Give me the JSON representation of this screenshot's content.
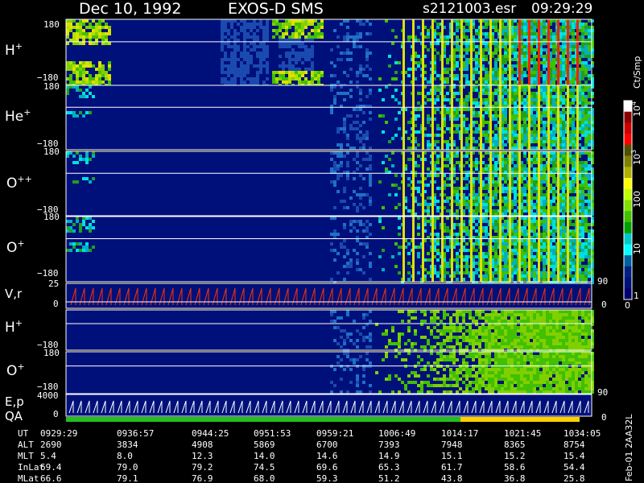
{
  "header": {
    "date": "Dec 10, 1992",
    "mission": "EXOS-D SMS",
    "file": "s2121003.esr",
    "start_time": "09:29:29"
  },
  "panels": [
    {
      "label": "H",
      "sup": "+",
      "ytop": "180",
      "ybot": "−180"
    },
    {
      "label": "He",
      "sup": "+",
      "ytop": "180",
      "ybot": "−180"
    },
    {
      "label": "O",
      "sup": "++",
      "ytop": "180",
      "ybot": "−180"
    },
    {
      "label": "O",
      "sup": "+",
      "ytop": "180",
      "ybot": "−180"
    },
    {
      "label": "V,r",
      "sup": "",
      "ytop": "25",
      "ybot": "0"
    },
    {
      "label": "H",
      "sup": "+",
      "ytop": "",
      "ybot": "−180"
    },
    {
      "label": "O",
      "sup": "+",
      "ytop": "180",
      "ybot": "−180"
    },
    {
      "label": "E,p",
      "sup": "",
      "ytop": "4000",
      "ybot": "0"
    }
  ],
  "qa_label": "QA",
  "right_axis": {
    "vr_top": "90",
    "vr_bot": "0",
    "o_bot": "90",
    "ep_bot": "0"
  },
  "colorbar": {
    "title": "Ct/Smp",
    "ticks": [
      {
        "label": "10",
        "sup": "4",
        "rotated": true
      },
      {
        "label": "10",
        "sup": "3",
        "rotated": true
      },
      {
        "label": "100",
        "sup": "",
        "rotated": true
      },
      {
        "label": "10",
        "sup": "",
        "rotated": true
      },
      {
        "label": "1",
        "sup": "",
        "rotated": false
      },
      {
        "label": "0",
        "sup": "",
        "rotated": false
      }
    ],
    "colors": [
      "#ffffff",
      "#8b0000",
      "#cc0000",
      "#ff0000",
      "#505000",
      "#808000",
      "#b0b000",
      "#ffff00",
      "#c0ff00",
      "#80e000",
      "#40c000",
      "#00a000",
      "#00c8c8",
      "#00ffff",
      "#0060a0",
      "#002080",
      "#00107a",
      "#000070"
    ]
  },
  "ephemeris": {
    "row_labels": [
      "UT",
      "ALT",
      "MLT",
      "InLat",
      "MLat"
    ],
    "columns": [
      [
        "0929:29",
        "2690",
        "5.4",
        "69.4",
        "66.6"
      ],
      [
        "0936:57",
        "3834",
        "8.0",
        "79.0",
        "79.1"
      ],
      [
        "0944:25",
        "4908",
        "12.3",
        "79.2",
        "76.9"
      ],
      [
        "0951:53",
        "5869",
        "14.0",
        "74.5",
        "68.0"
      ],
      [
        "0959:21",
        "6700",
        "14.6",
        "69.6",
        "59.3"
      ],
      [
        "1006:49",
        "7393",
        "14.9",
        "65.3",
        "51.2"
      ],
      [
        "1014:17",
        "7948",
        "15.1",
        "61.7",
        "43.8"
      ],
      [
        "1021:45",
        "8365",
        "15.2",
        "58.6",
        "36.8"
      ],
      [
        "1034:05",
        "8754",
        "15.4",
        "54.4",
        "25.8"
      ]
    ]
  },
  "footer": {
    "stamp": "Feb-01 2AA32L"
  },
  "chart_data": {
    "type": "heatmap",
    "title": "Dec 10, 1992   EXOS-D SMS",
    "x_ticks": [
      "0929:29",
      "0936:57",
      "0944:25",
      "0951:53",
      "0959:21",
      "1006:49",
      "1014:17",
      "1021:45",
      "1034:05"
    ],
    "panels": [
      "H+",
      "He+",
      "O++",
      "O+",
      "V,r",
      "H+",
      "O+",
      "E,p"
    ],
    "colorbar_units": "Ct/Smp",
    "colorbar_scale": "log",
    "colorbar_ticks": [
      "1",
      "10",
      "100",
      "10^3",
      "10^4"
    ]
  }
}
